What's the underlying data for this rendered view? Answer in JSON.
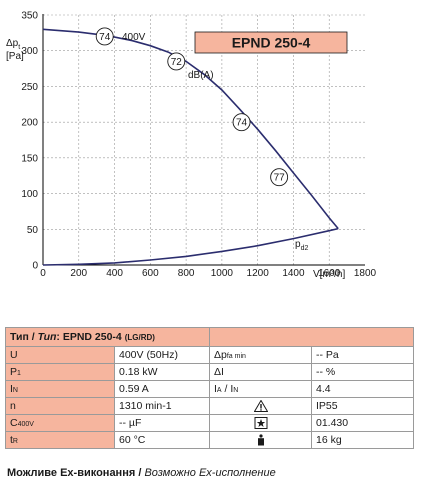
{
  "chart_data": {
    "type": "line",
    "title": "EPND 250-4",
    "xlabel": "V[m³/h]",
    "ylabel_parts": {
      "delta": "Δp",
      "sub": "t",
      "unit": "[Pa]"
    },
    "xlim": [
      0,
      1800
    ],
    "ylim": [
      0,
      350
    ],
    "x_ticks": [
      0,
      200,
      400,
      600,
      800,
      1000,
      1200,
      1400,
      1600,
      1800
    ],
    "y_ticks": [
      0,
      50,
      100,
      150,
      200,
      250,
      300,
      350
    ],
    "grid": true,
    "series": [
      {
        "name": "400V",
        "x": [
          0,
          100,
          200,
          300,
          400,
          500,
          600,
          700,
          800,
          900,
          1000,
          1100,
          1200,
          1300,
          1400,
          1500,
          1600,
          1650
        ],
        "y": [
          330,
          328,
          326,
          323,
          319,
          314,
          307,
          298,
          285,
          267,
          245,
          218,
          190,
          160,
          129,
          98,
          66,
          51
        ]
      },
      {
        "name": "pd2",
        "label_main": "p",
        "label_sub": "d2",
        "x": [
          0,
          200,
          400,
          600,
          800,
          1000,
          1200,
          1400,
          1600,
          1650
        ],
        "y": [
          0,
          1,
          3,
          7,
          12,
          19,
          27,
          37,
          48,
          51
        ]
      }
    ],
    "annotations": [
      {
        "text": "74",
        "x": 345,
        "y": 320
      },
      {
        "text": "72",
        "x": 745,
        "y": 285
      },
      {
        "text": "74",
        "x": 1110,
        "y": 200
      },
      {
        "text": "77",
        "x": 1320,
        "y": 123
      }
    ],
    "curve_label": "400V",
    "db_label": "dB(A)"
  },
  "spec_table": {
    "header": {
      "prefix": "Тип / ",
      "prefix_italic": "Тип",
      "sep": ": ",
      "model": "EPND 250-4",
      "suffix": "(LG/RD)"
    },
    "rows": [
      {
        "p1": "U",
        "v1": "400V (50Hz)",
        "p2": "Δpfa min",
        "v2": "-- Pa"
      },
      {
        "p1": "P1",
        "v1": "0.18 kW",
        "p2": "ΔI",
        "v2": "-- %"
      },
      {
        "p1": "IN",
        "v1": "0.59 A",
        "p2": "IA / IN",
        "v2": "4.4"
      },
      {
        "p1": "n",
        "v1": "1310 min-1",
        "p2": "",
        "icon": "warning-triangle",
        "v2": "IP55"
      },
      {
        "p1": "C400V",
        "v1": "-- µF",
        "p2": "",
        "icon": "star-box",
        "v2": "01.430"
      },
      {
        "p1": "tR",
        "v1": "60 °C",
        "p2": "",
        "icon": "weight",
        "v2": "16 kg"
      }
    ]
  },
  "footer": {
    "bold": "Можливе Ех-виконання / ",
    "italic": "Возможно Ех-исполнение"
  }
}
